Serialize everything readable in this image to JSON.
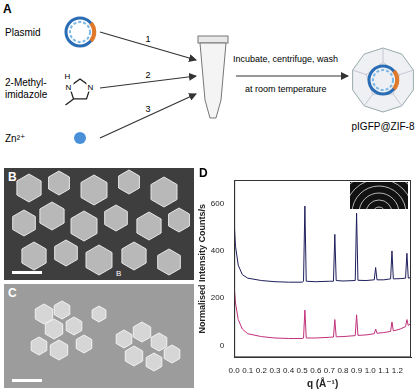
{
  "figure": {
    "panel_a": {
      "label": "A",
      "inputs": [
        {
          "step": "1",
          "label_lines": [
            "Plasmid"
          ]
        },
        {
          "step": "2",
          "label_lines": [
            "2-Methyl-",
            "imidazole"
          ],
          "structure_text": [
            "H",
            "N",
            "N"
          ]
        },
        {
          "step": "3",
          "label_lines": [
            "Zn²⁺"
          ]
        }
      ],
      "process_lines": [
        "Incubate, centrifuge, wash",
        "at room temperature"
      ],
      "product": "pIGFP@ZIF-8"
    },
    "panel_b": {
      "label": "B",
      "inner_label": "B"
    },
    "panel_c": {
      "label": "C"
    },
    "panel_d": {
      "label": "D"
    }
  },
  "chart_data": {
    "type": "line",
    "x_label": "q (Å⁻¹)",
    "y_label": "Normalised Intensity Counts/s",
    "x": [
      0,
      0.01,
      0.03,
      0.06,
      0.1,
      0.2,
      0.3,
      0.4,
      0.5,
      0.51,
      0.52,
      0.53,
      0.6,
      0.7,
      0.73,
      0.74,
      0.75,
      0.8,
      0.89,
      0.9,
      0.91,
      0.97,
      1.03,
      1.04,
      1.05,
      1.1,
      1.15,
      1.16,
      1.17,
      1.22,
      1.26,
      1.27,
      1.28,
      1.3
    ],
    "series": [
      {
        "color": "#1f1f5c",
        "values": [
          520,
          420,
          340,
          300,
          285,
          275,
          270,
          268,
          268,
          272,
          590,
          272,
          270,
          272,
          272,
          470,
          275,
          273,
          275,
          560,
          276,
          275,
          278,
          330,
          278,
          278,
          282,
          400,
          282,
          283,
          285,
          390,
          285,
          288
        ]
      },
      {
        "color": "#c0307a",
        "values": [
          250,
          180,
          110,
          70,
          50,
          38,
          32,
          30,
          30,
          32,
          150,
          32,
          32,
          35,
          36,
          110,
          37,
          38,
          42,
          130,
          43,
          45,
          50,
          70,
          52,
          55,
          60,
          100,
          62,
          70,
          80,
          110,
          85,
          95
        ]
      }
    ],
    "xlim": [
      0,
      1.3
    ],
    "xticks": [
      {
        "value": 0,
        "label": "0.0"
      },
      {
        "value": 0.1,
        "label": "0.1"
      },
      {
        "value": 0.2,
        "label": "0.2"
      },
      {
        "value": 0.3,
        "label": "0.3"
      },
      {
        "value": 0.4,
        "label": "0.4"
      },
      {
        "value": 0.5,
        "label": "0.5"
      },
      {
        "value": 0.6,
        "label": "0.6"
      },
      {
        "value": 0.7,
        "label": "0.7"
      },
      {
        "value": 0.8,
        "label": "0.8"
      },
      {
        "value": 0.9,
        "label": "0.9"
      },
      {
        "value": 1,
        "label": "1.0"
      },
      {
        "value": 1.1,
        "label": "1.1"
      },
      {
        "value": 1.2,
        "label": "1.2"
      }
    ],
    "ylim": [
      -50,
      700
    ],
    "yticks": [
      0,
      200,
      400,
      600
    ],
    "grid": false
  }
}
